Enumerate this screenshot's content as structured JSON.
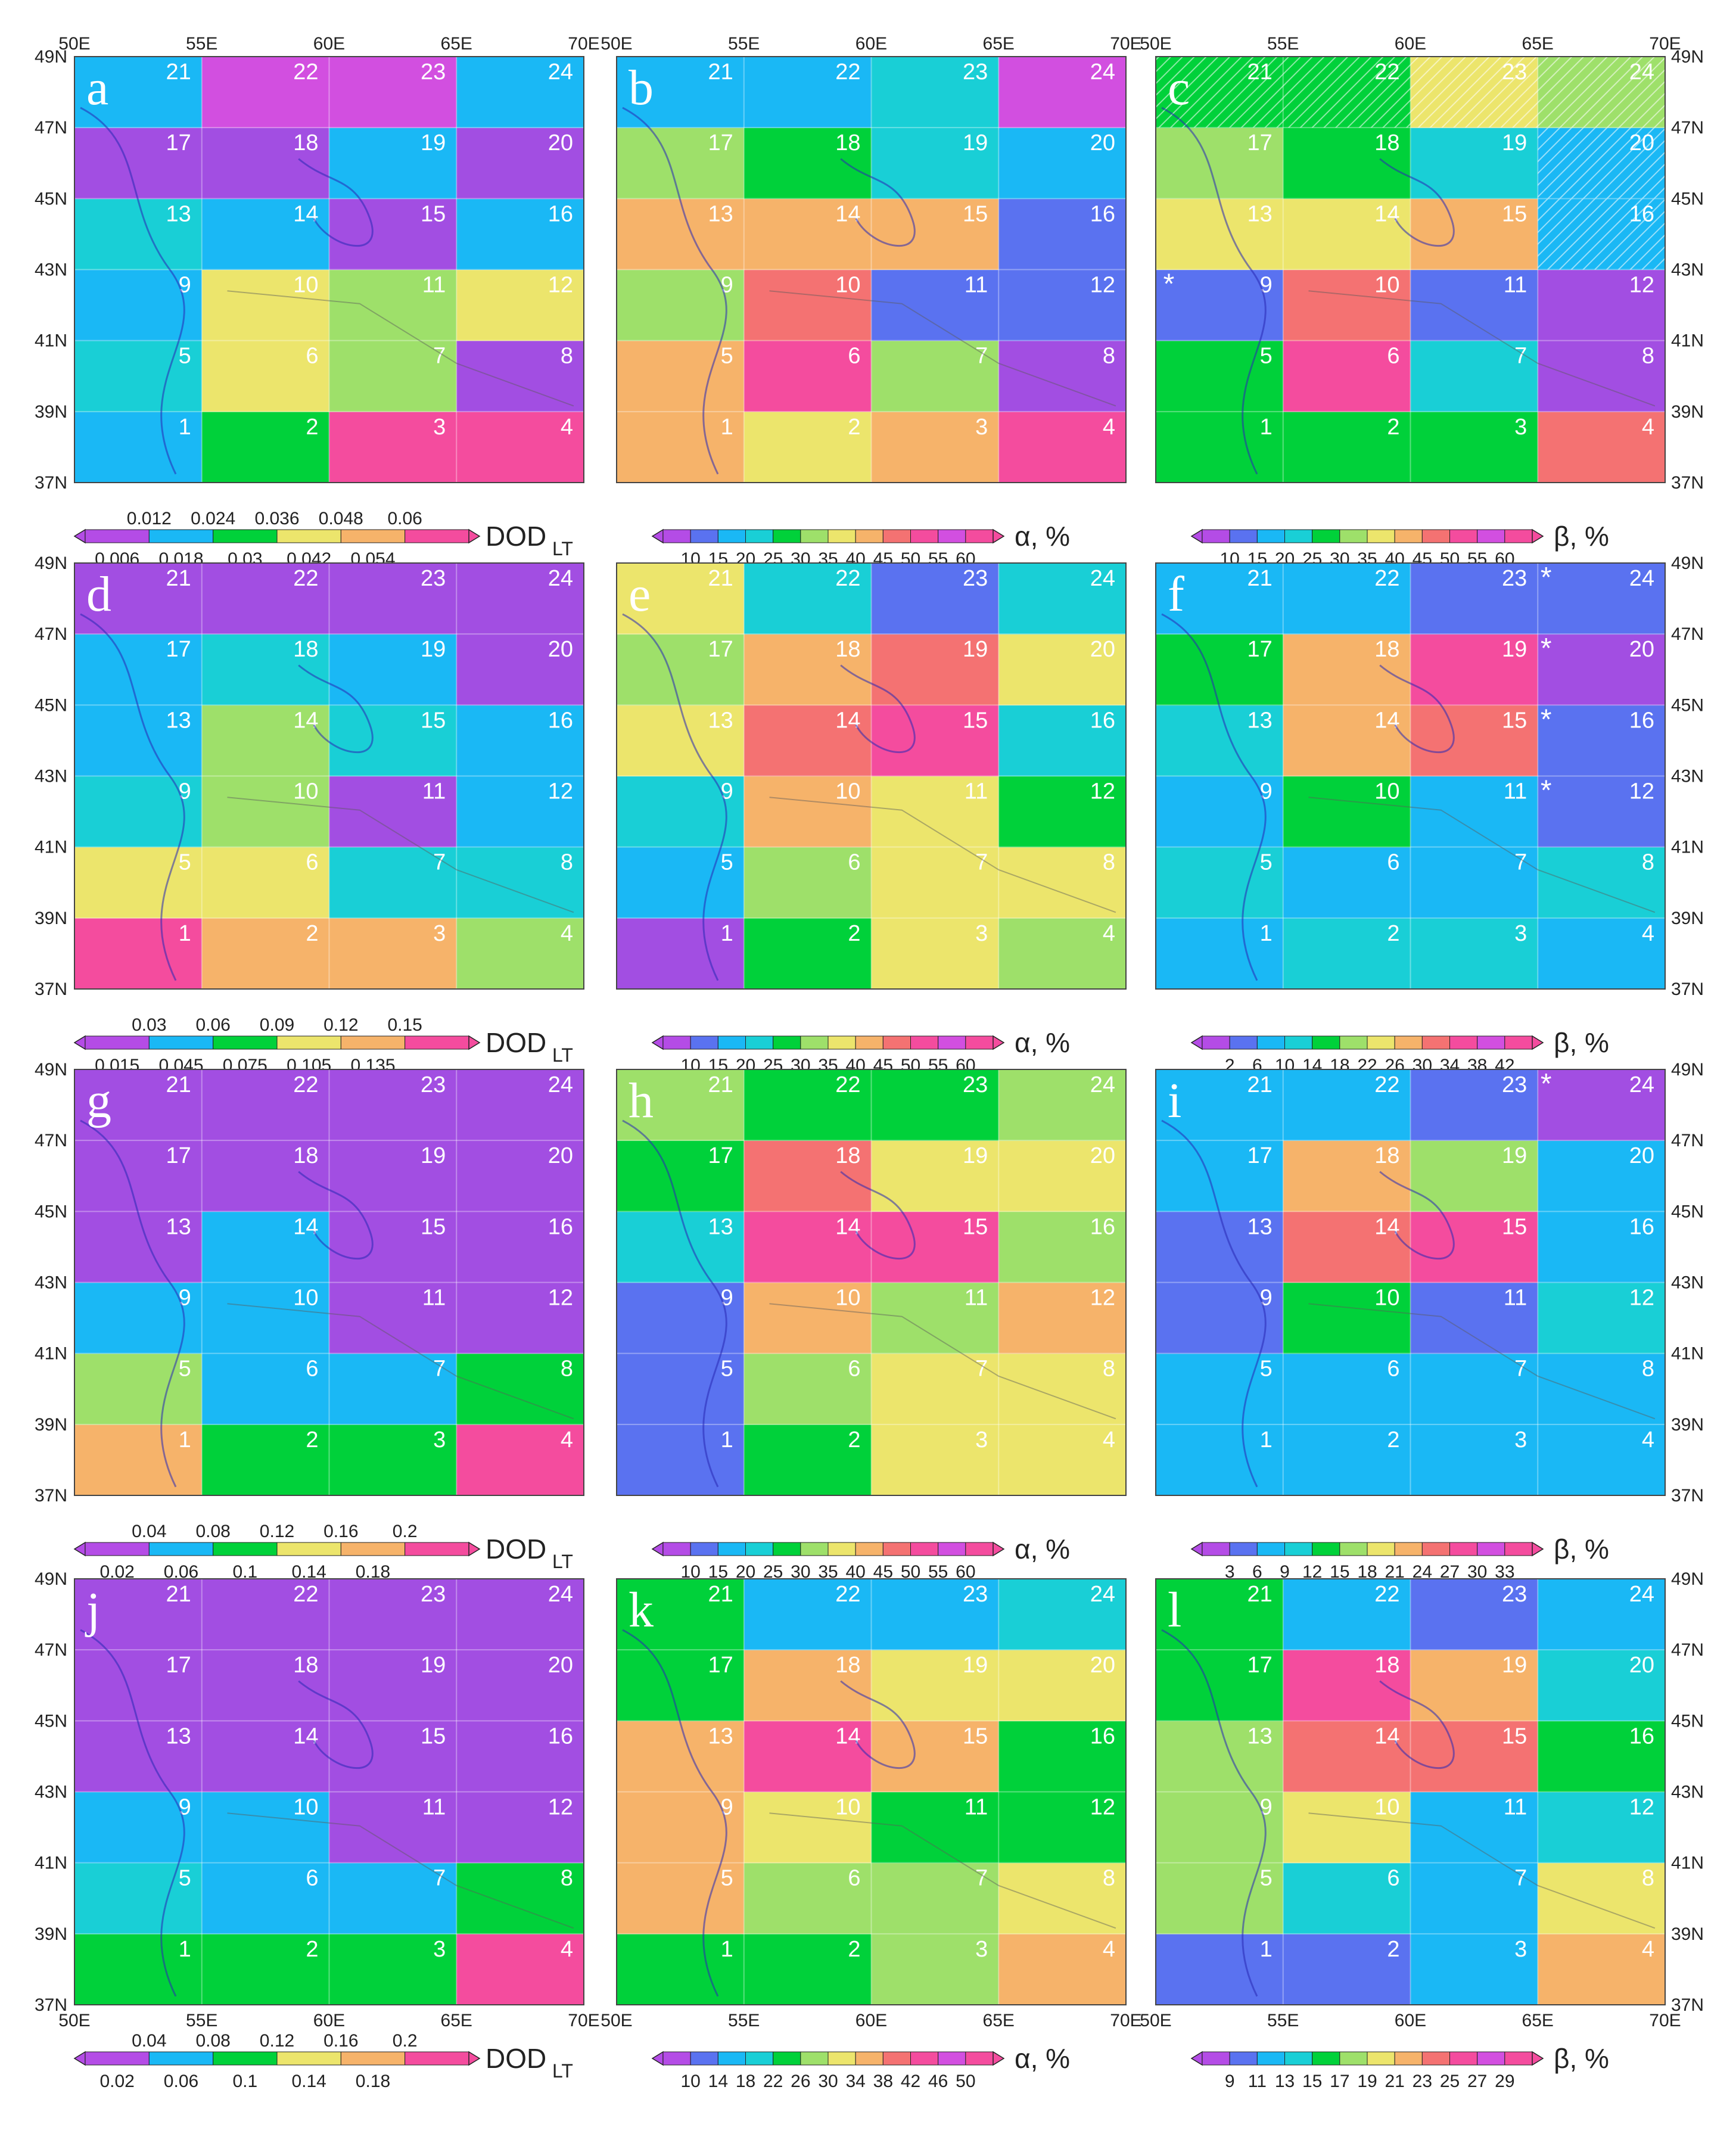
{
  "figure": {
    "x_ticks": [
      "50E",
      "55E",
      "60E",
      "65E",
      "70E"
    ],
    "y_ticks": [
      "37N",
      "39N",
      "41N",
      "43N",
      "45N",
      "47N",
      "49N"
    ],
    "colors": {
      "violet": "#b44ce6",
      "purple": "#a24ee2",
      "blue": "#5a72f0",
      "sky": "#1ab8f5",
      "cyan": "#19cfd6",
      "green": "#00d13a",
      "lime": "#9ee06a",
      "yellow": "#ece56c",
      "orange": "#f6b36a",
      "salmon": "#f47272",
      "pink": "#f44c9e",
      "magenta": "#d24fe0"
    }
  },
  "panels": [
    {
      "letter": "a",
      "cells": [
        "sky",
        "green",
        "pink",
        "pink",
        "cyan",
        "yellow",
        "lime",
        "purple",
        "sky",
        "yellow",
        "lime",
        "yellow",
        "cyan",
        "sky",
        "purple",
        "sky",
        "purple",
        "purple",
        "sky",
        "purple",
        "sky",
        "magenta",
        "magenta",
        "sky"
      ],
      "hatch": [],
      "stars": [],
      "legend": {
        "label": "DOD",
        "sub": "LT",
        "ticks_top": [
          "0.012",
          "0.024",
          "0.036",
          "0.048",
          "0.06"
        ],
        "ticks_bottom": [
          "0.006",
          "0.018",
          "0.03",
          "0.042",
          "0.054"
        ]
      }
    },
    {
      "letter": "b",
      "cells": [
        "orange",
        "yellow",
        "orange",
        "pink",
        "orange",
        "pink",
        "lime",
        "purple",
        "lime",
        "salmon",
        "blue",
        "blue",
        "orange",
        "orange",
        "orange",
        "blue",
        "lime",
        "green",
        "cyan",
        "sky",
        "sky",
        "sky",
        "cyan",
        "magenta"
      ],
      "hatch": [],
      "stars": [],
      "legend": {
        "label": "α, %",
        "sub": "",
        "ticks": [
          "10",
          "15",
          "20",
          "25",
          "30",
          "35",
          "40",
          "45",
          "50",
          "55",
          "60"
        ]
      }
    },
    {
      "letter": "c",
      "cells": [
        "green",
        "green",
        "green",
        "salmon",
        "green",
        "pink",
        "cyan",
        "purple",
        "blue",
        "salmon",
        "blue",
        "purple",
        "yellow",
        "yellow",
        "orange",
        "sky",
        "lime",
        "green",
        "cyan",
        "sky",
        "green",
        "green",
        "yellow",
        "lime"
      ],
      "hatch": [
        15,
        19,
        20,
        21,
        22,
        23
      ],
      "stars": [
        {
          "cell": 8,
          "side": "left"
        }
      ],
      "legend": {
        "label": "β, %",
        "sub": "",
        "ticks": [
          "10",
          "15",
          "20",
          "25",
          "30",
          "35",
          "40",
          "45",
          "50",
          "55",
          "60"
        ]
      }
    },
    {
      "letter": "d",
      "cells": [
        "pink",
        "orange",
        "orange",
        "lime",
        "yellow",
        "yellow",
        "cyan",
        "cyan",
        "cyan",
        "lime",
        "purple",
        "sky",
        "sky",
        "lime",
        "cyan",
        "sky",
        "sky",
        "cyan",
        "sky",
        "purple",
        "purple",
        "purple",
        "purple",
        "purple"
      ],
      "hatch": [],
      "stars": [],
      "legend": {
        "label": "DOD",
        "sub": "LT",
        "ticks_top": [
          "0.03",
          "0.06",
          "0.09",
          "0.12",
          "0.15"
        ],
        "ticks_bottom": [
          "0.015",
          "0.045",
          "0.075",
          "0.105",
          "0.135"
        ]
      }
    },
    {
      "letter": "e",
      "cells": [
        "purple",
        "green",
        "yellow",
        "lime",
        "sky",
        "lime",
        "yellow",
        "yellow",
        "cyan",
        "orange",
        "yellow",
        "green",
        "yellow",
        "salmon",
        "pink",
        "cyan",
        "lime",
        "orange",
        "salmon",
        "yellow",
        "yellow",
        "cyan",
        "blue",
        "cyan"
      ],
      "hatch": [],
      "stars": [],
      "legend": {
        "label": "α, %",
        "sub": "",
        "ticks": [
          "10",
          "15",
          "20",
          "25",
          "30",
          "35",
          "40",
          "45",
          "50",
          "55",
          "60"
        ]
      }
    },
    {
      "letter": "f",
      "cells": [
        "sky",
        "cyan",
        "cyan",
        "sky",
        "cyan",
        "sky",
        "sky",
        "cyan",
        "sky",
        "green",
        "sky",
        "blue",
        "cyan",
        "orange",
        "salmon",
        "blue",
        "green",
        "orange",
        "pink",
        "purple",
        "sky",
        "sky",
        "blue",
        "blue"
      ],
      "hatch": [],
      "stars": [
        {
          "cell": 10,
          "side": "right"
        },
        {
          "cell": 14,
          "side": "right"
        },
        {
          "cell": 18,
          "side": "right"
        },
        {
          "cell": 22,
          "side": "right"
        }
      ],
      "legend": {
        "label": "β, %",
        "sub": "",
        "ticks": [
          "2",
          "6",
          "10",
          "14",
          "18",
          "22",
          "26",
          "30",
          "34",
          "38",
          "42"
        ]
      }
    },
    {
      "letter": "g",
      "cells": [
        "orange",
        "green",
        "green",
        "pink",
        "lime",
        "sky",
        "sky",
        "green",
        "sky",
        "sky",
        "purple",
        "purple",
        "purple",
        "sky",
        "purple",
        "purple",
        "purple",
        "purple",
        "purple",
        "purple",
        "purple",
        "purple",
        "purple",
        "purple"
      ],
      "hatch": [],
      "stars": [],
      "legend": {
        "label": "DOD",
        "sub": "LT",
        "ticks_top": [
          "0.04",
          "0.08",
          "0.12",
          "0.16",
          "0.2"
        ],
        "ticks_bottom": [
          "0.02",
          "0.06",
          "0.1",
          "0.14",
          "0.18"
        ]
      }
    },
    {
      "letter": "h",
      "cells": [
        "blue",
        "green",
        "yellow",
        "yellow",
        "blue",
        "lime",
        "yellow",
        "yellow",
        "blue",
        "orange",
        "lime",
        "orange",
        "cyan",
        "pink",
        "pink",
        "lime",
        "green",
        "salmon",
        "yellow",
        "yellow",
        "lime",
        "green",
        "green",
        "lime"
      ],
      "hatch": [],
      "stars": [],
      "legend": {
        "label": "α, %",
        "sub": "",
        "ticks": [
          "10",
          "15",
          "20",
          "25",
          "30",
          "35",
          "40",
          "45",
          "50",
          "55",
          "60"
        ]
      }
    },
    {
      "letter": "i",
      "cells": [
        "sky",
        "sky",
        "sky",
        "sky",
        "sky",
        "sky",
        "sky",
        "sky",
        "blue",
        "green",
        "blue",
        "cyan",
        "blue",
        "salmon",
        "pink",
        "sky",
        "sky",
        "orange",
        "lime",
        "sky",
        "sky",
        "sky",
        "blue",
        "purple"
      ],
      "hatch": [],
      "stars": [
        {
          "cell": 22,
          "side": "right"
        }
      ],
      "legend": {
        "label": "β, %",
        "sub": "",
        "ticks": [
          "3",
          "6",
          "9",
          "12",
          "15",
          "18",
          "21",
          "24",
          "27",
          "30",
          "33"
        ]
      }
    },
    {
      "letter": "j",
      "cells": [
        "green",
        "green",
        "green",
        "pink",
        "cyan",
        "sky",
        "sky",
        "green",
        "sky",
        "sky",
        "purple",
        "purple",
        "purple",
        "purple",
        "purple",
        "purple",
        "purple",
        "purple",
        "purple",
        "purple",
        "purple",
        "purple",
        "purple",
        "purple"
      ],
      "hatch": [],
      "stars": [],
      "legend": {
        "label": "DOD",
        "sub": "LT",
        "ticks_top": [
          "0.04",
          "0.08",
          "0.12",
          "0.16",
          "0.2"
        ],
        "ticks_bottom": [
          "0.02",
          "0.06",
          "0.1",
          "0.14",
          "0.18"
        ]
      }
    },
    {
      "letter": "k",
      "cells": [
        "green",
        "green",
        "lime",
        "orange",
        "orange",
        "lime",
        "lime",
        "yellow",
        "orange",
        "yellow",
        "green",
        "green",
        "orange",
        "pink",
        "orange",
        "green",
        "green",
        "orange",
        "yellow",
        "yellow",
        "green",
        "sky",
        "sky",
        "cyan"
      ],
      "hatch": [],
      "stars": [],
      "legend": {
        "label": "α, %",
        "sub": "",
        "ticks": [
          "10",
          "14",
          "18",
          "22",
          "26",
          "30",
          "34",
          "38",
          "42",
          "46",
          "50"
        ]
      }
    },
    {
      "letter": "l",
      "cells": [
        "blue",
        "blue",
        "sky",
        "orange",
        "lime",
        "cyan",
        "sky",
        "yellow",
        "lime",
        "yellow",
        "sky",
        "cyan",
        "lime",
        "salmon",
        "salmon",
        "green",
        "green",
        "pink",
        "orange",
        "cyan",
        "green",
        "sky",
        "blue",
        "sky"
      ],
      "hatch": [],
      "stars": [],
      "legend": {
        "label": "β, %",
        "sub": "",
        "ticks": [
          "9",
          "11",
          "13",
          "15",
          "17",
          "19",
          "21",
          "23",
          "25",
          "27",
          "29"
        ]
      }
    }
  ]
}
